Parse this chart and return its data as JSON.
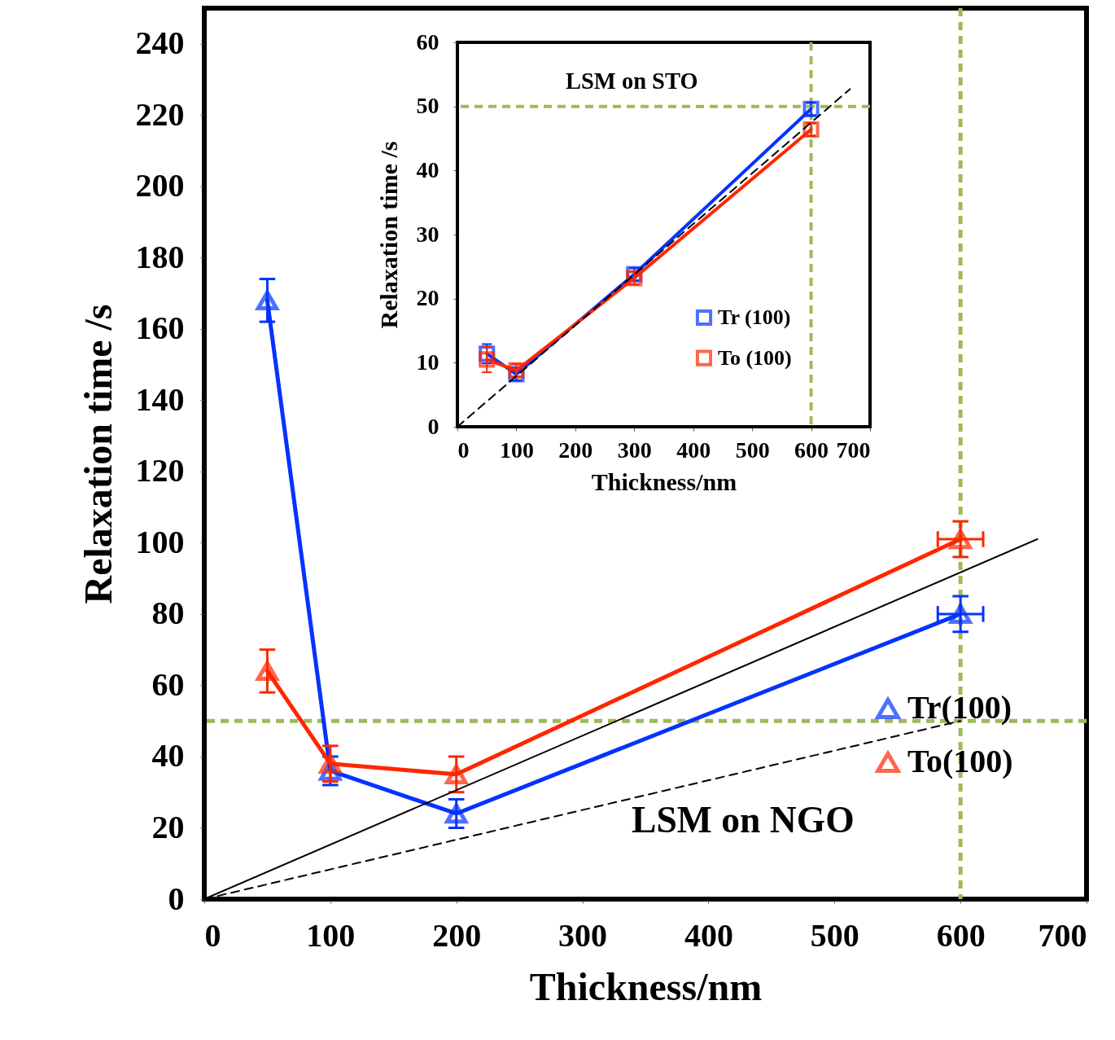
{
  "chart_data": [
    {
      "type": "line",
      "xlabel": "Thickness/nm",
      "ylabel": "Relaxation time /s",
      "xlim": [
        0,
        700
      ],
      "xticks": [
        0,
        100,
        200,
        300,
        400,
        500,
        600,
        700
      ],
      "ylim": [
        0,
        250
      ],
      "yticks": [
        0,
        20,
        40,
        60,
        80,
        100,
        120,
        140,
        160,
        180,
        200,
        220,
        240
      ],
      "grid": false,
      "marker": "triangle",
      "legend": "bottom right",
      "annotations": [
        "LSM on NGO"
      ],
      "ref_lines": [
        {
          "axis": "y",
          "value": 50,
          "color": "#9bbb59",
          "line_style": "dashed"
        },
        {
          "axis": "x",
          "value": 600,
          "color": "#9bbb59",
          "line_style": "dashed"
        }
      ],
      "series": [
        {
          "name": "Tr(100)",
          "color": "#0433ff",
          "x": [
            50,
            100,
            200,
            600
          ],
          "values": [
            168,
            36,
            24,
            80
          ],
          "errors": [
            6,
            4,
            4,
            5
          ],
          "xerrors": [
            null,
            null,
            null,
            18
          ]
        },
        {
          "name": "To(100)",
          "color": "#ff2600",
          "x": [
            50,
            100,
            200,
            600
          ],
          "values": [
            64,
            38,
            35,
            101
          ],
          "errors": [
            6,
            5,
            5,
            5
          ],
          "xerrors": [
            null,
            null,
            null,
            18
          ]
        },
        {
          "type": "line",
          "color": "#000000",
          "x": [
            0,
            661
          ],
          "values": [
            0,
            101
          ],
          "marker": "none",
          "line_style": "solid"
        },
        {
          "type": "line",
          "color": "#000000",
          "x": [
            0,
            600
          ],
          "values": [
            0,
            50
          ],
          "marker": "none",
          "line_style": "dashed"
        }
      ]
    },
    {
      "type": "line",
      "xlabel": "Thickness/nm",
      "ylabel": "Relaxation time /s",
      "xlim": [
        0,
        700
      ],
      "xticks": [
        0,
        100,
        200,
        300,
        400,
        500,
        600,
        700
      ],
      "ylim": [
        0,
        60
      ],
      "yticks": [
        0,
        10,
        20,
        30,
        40,
        50,
        60
      ],
      "grid": false,
      "marker": "square",
      "legend": "right",
      "annotations": [
        "LSM on STO"
      ],
      "ref_lines": [
        {
          "axis": "y",
          "value": 50,
          "color": "#9bbb59",
          "line_style": "dashed"
        },
        {
          "axis": "x",
          "value": 600,
          "color": "#9bbb59",
          "line_style": "dashed"
        }
      ],
      "series": [
        {
          "name": "Tr (100)",
          "color": "#0433ff",
          "x": [
            50,
            100,
            300,
            600
          ],
          "values": [
            11.4,
            8.2,
            23.8,
            49.6
          ],
          "errors": [
            1.5,
            1,
            1,
            1
          ]
        },
        {
          "name": "To (100)",
          "color": "#ff2600",
          "x": [
            50,
            100,
            300,
            600
          ],
          "values": [
            10.5,
            8.8,
            23.2,
            46.4
          ],
          "errors": [
            2,
            1,
            1,
            1
          ]
        },
        {
          "type": "line",
          "color": "#000000",
          "x": [
            0,
            666
          ],
          "values": [
            0,
            52.7
          ],
          "marker": "none",
          "line_style": "dashed"
        }
      ]
    }
  ]
}
